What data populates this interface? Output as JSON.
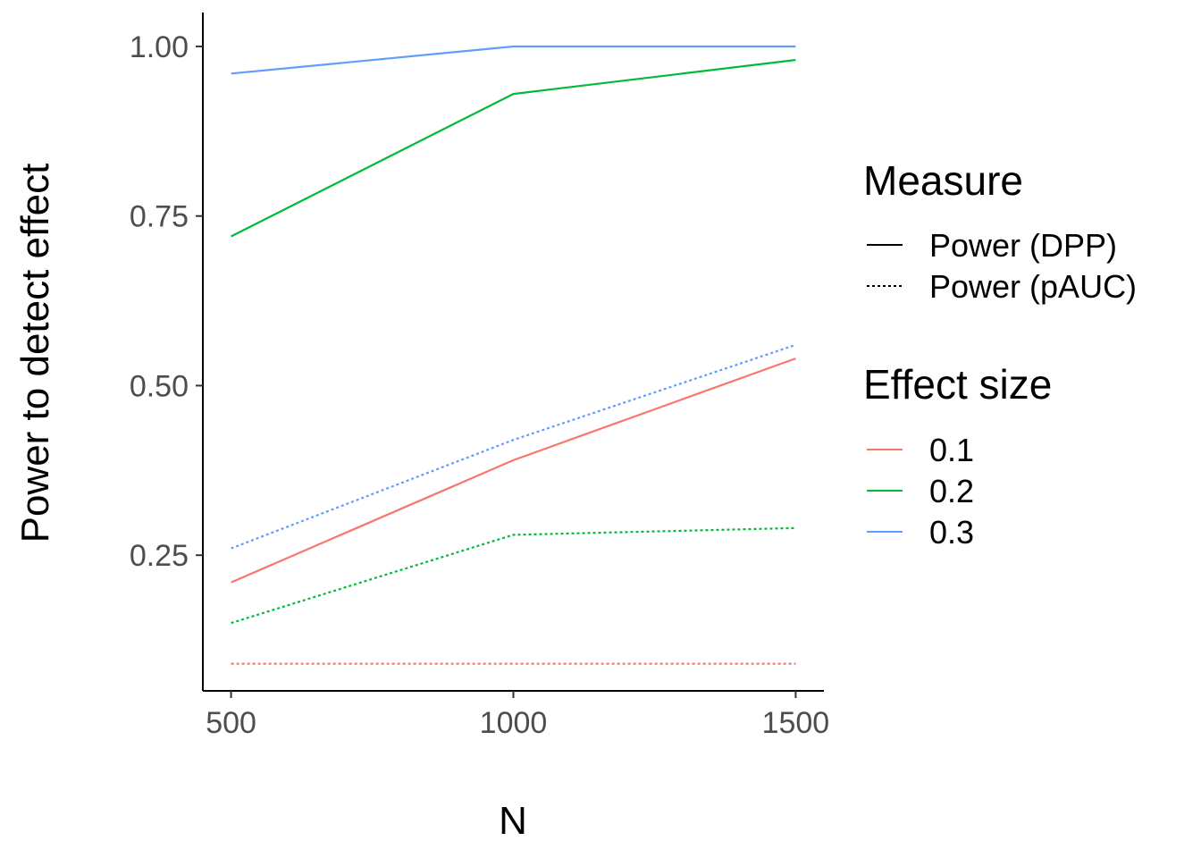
{
  "chart_data": {
    "type": "line",
    "title": "",
    "xlabel": "N",
    "ylabel": "Power to detect effect",
    "x": [
      500,
      1000,
      1500
    ],
    "x_ticks": [
      500,
      1000,
      1500
    ],
    "x_tick_labels": [
      "500",
      "1000",
      "1500"
    ],
    "xlim": [
      450,
      1550
    ],
    "y_ticks": [
      0.25,
      0.5,
      0.75,
      1.0
    ],
    "y_tick_labels": [
      "0.25",
      "0.50",
      "0.75",
      "1.00"
    ],
    "ylim": [
      0.05,
      1.05
    ],
    "grid": false,
    "legend_position": "right",
    "legends": [
      {
        "title": "Measure",
        "entries": [
          {
            "label": "Power (DPP)",
            "linetype": "solid"
          },
          {
            "label": "Power (pAUC)",
            "linetype": "dotted"
          }
        ]
      },
      {
        "title": "Effect size",
        "entries": [
          {
            "label": "0.1",
            "color": "#F8766D"
          },
          {
            "label": "0.2",
            "color": "#00BA38"
          },
          {
            "label": "0.3",
            "color": "#619CFF"
          }
        ]
      }
    ],
    "series": [
      {
        "effect": "0.1",
        "measure": "Power (DPP)",
        "color": "#F8766D",
        "linetype": "solid",
        "values": [
          0.21,
          0.39,
          0.54
        ]
      },
      {
        "effect": "0.2",
        "measure": "Power (DPP)",
        "color": "#00BA38",
        "linetype": "solid",
        "values": [
          0.72,
          0.93,
          0.98
        ]
      },
      {
        "effect": "0.3",
        "measure": "Power (DPP)",
        "color": "#619CFF",
        "linetype": "solid",
        "values": [
          0.96,
          1.0,
          1.0
        ]
      },
      {
        "effect": "0.1",
        "measure": "Power (pAUC)",
        "color": "#F8766D",
        "linetype": "dotted",
        "values": [
          0.09,
          0.09,
          0.09
        ]
      },
      {
        "effect": "0.2",
        "measure": "Power (pAUC)",
        "color": "#00BA38",
        "linetype": "dotted",
        "values": [
          0.15,
          0.28,
          0.29
        ]
      },
      {
        "effect": "0.3",
        "measure": "Power (pAUC)",
        "color": "#619CFF",
        "linetype": "dotted",
        "values": [
          0.26,
          0.42,
          0.56
        ]
      }
    ]
  }
}
